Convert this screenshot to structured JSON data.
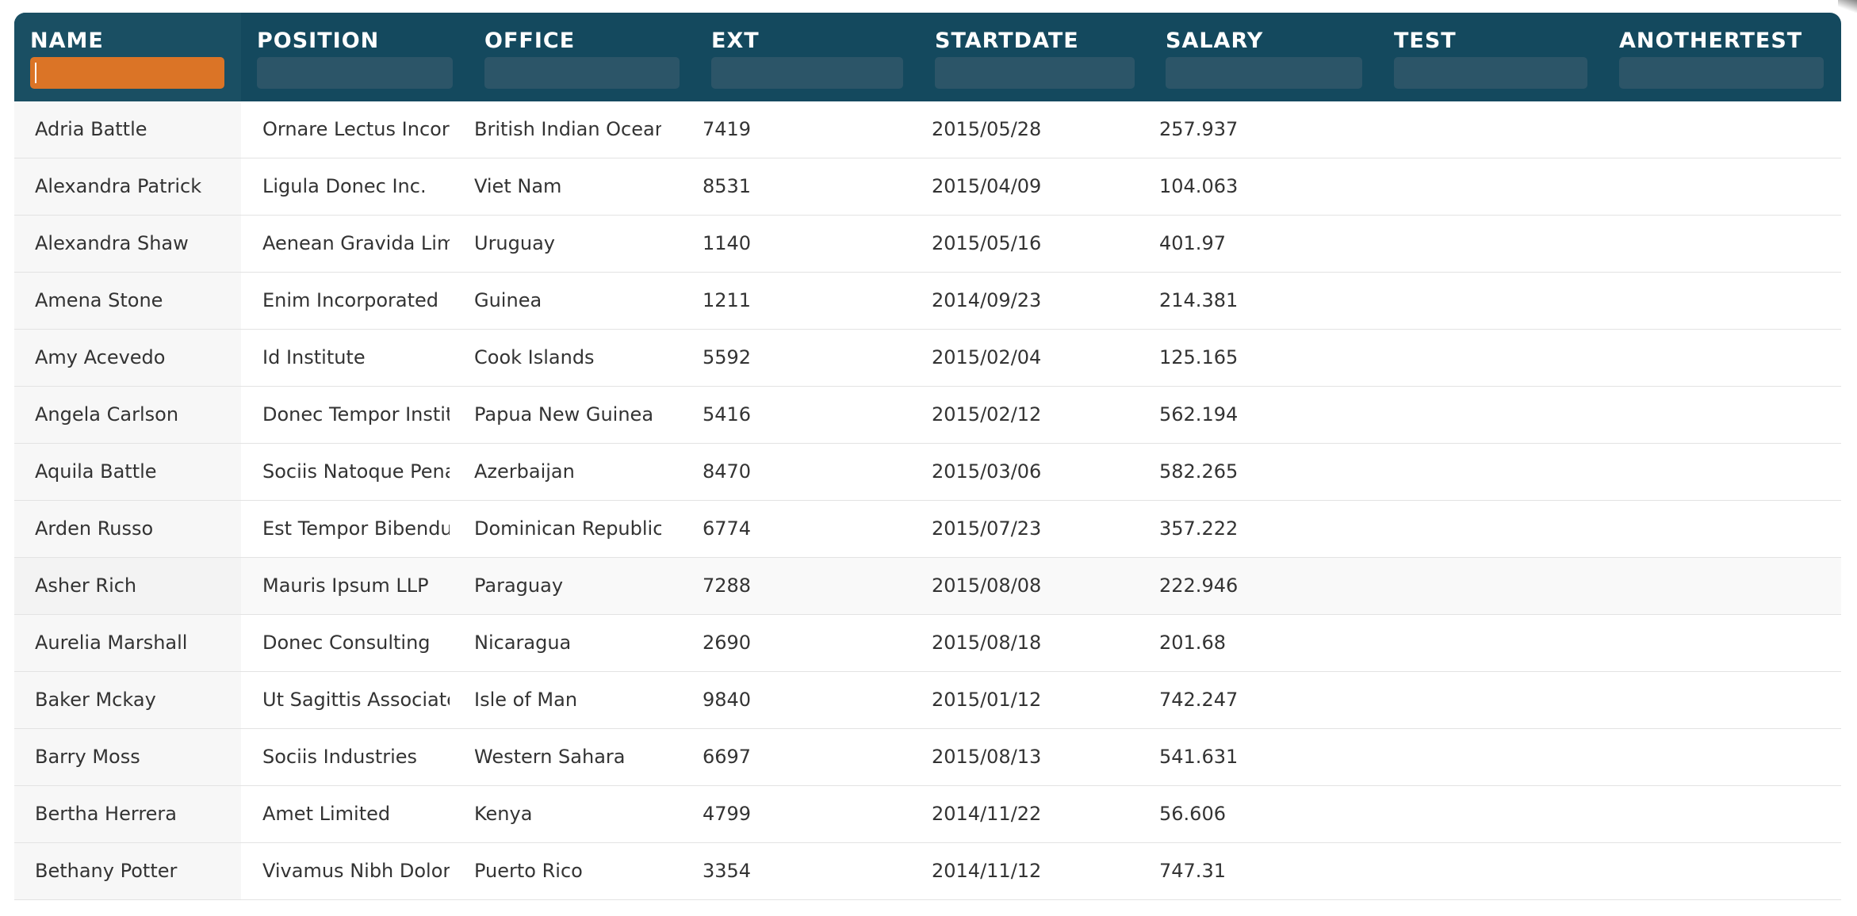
{
  "columns": [
    {
      "key": "name",
      "label": "NAME"
    },
    {
      "key": "position",
      "label": "POSITION"
    },
    {
      "key": "office",
      "label": "OFFICE"
    },
    {
      "key": "ext",
      "label": "EXT"
    },
    {
      "key": "startdate",
      "label": "STARTDATE"
    },
    {
      "key": "salary",
      "label": "SALARY"
    },
    {
      "key": "test",
      "label": "TEST"
    },
    {
      "key": "anothertest",
      "label": "ANOTHERTEST"
    }
  ],
  "filters": {
    "name": "",
    "position": "",
    "office": "",
    "ext": "",
    "startdate": "",
    "salary": "",
    "test": "",
    "anothertest": ""
  },
  "rows": [
    {
      "name": "Adria Battle",
      "position": "Ornare Lectus Incorporated",
      "office": "British Indian Ocean Territory",
      "ext": "7419",
      "startdate": "2015/05/28",
      "salary": "257.937",
      "test": "",
      "anothertest": ""
    },
    {
      "name": "Alexandra Patrick",
      "position": "Ligula Donec Inc.",
      "office": "Viet Nam",
      "ext": "8531",
      "startdate": "2015/04/09",
      "salary": "104.063",
      "test": "",
      "anothertest": ""
    },
    {
      "name": "Alexandra Shaw",
      "position": "Aenean Gravida Limited",
      "office": "Uruguay",
      "ext": "1140",
      "startdate": "2015/05/16",
      "salary": "401.97",
      "test": "",
      "anothertest": ""
    },
    {
      "name": "Amena Stone",
      "position": "Enim Incorporated",
      "office": "Guinea",
      "ext": "1211",
      "startdate": "2014/09/23",
      "salary": "214.381",
      "test": "",
      "anothertest": ""
    },
    {
      "name": "Amy Acevedo",
      "position": "Id Institute",
      "office": "Cook Islands",
      "ext": "5592",
      "startdate": "2015/02/04",
      "salary": "125.165",
      "test": "",
      "anothertest": ""
    },
    {
      "name": "Angela Carlson",
      "position": "Donec Tempor Institute",
      "office": "Papua New Guinea",
      "ext": "5416",
      "startdate": "2015/02/12",
      "salary": "562.194",
      "test": "",
      "anothertest": ""
    },
    {
      "name": "Aquila Battle",
      "position": "Sociis Natoque Penatibus",
      "office": "Azerbaijan",
      "ext": "8470",
      "startdate": "2015/03/06",
      "salary": "582.265",
      "test": "",
      "anothertest": ""
    },
    {
      "name": "Arden Russo",
      "position": "Est Tempor Bibendum",
      "office": "Dominican Republic",
      "ext": "6774",
      "startdate": "2015/07/23",
      "salary": "357.222",
      "test": "",
      "anothertest": ""
    },
    {
      "name": "Asher Rich",
      "position": "Mauris Ipsum LLP",
      "office": "Paraguay",
      "ext": "7288",
      "startdate": "2015/08/08",
      "salary": "222.946",
      "test": "",
      "anothertest": ""
    },
    {
      "name": "Aurelia Marshall",
      "position": "Donec Consulting",
      "office": "Nicaragua",
      "ext": "2690",
      "startdate": "2015/08/18",
      "salary": "201.68",
      "test": "",
      "anothertest": ""
    },
    {
      "name": "Baker Mckay",
      "position": "Ut Sagittis Associates",
      "office": "Isle of Man",
      "ext": "9840",
      "startdate": "2015/01/12",
      "salary": "742.247",
      "test": "",
      "anothertest": ""
    },
    {
      "name": "Barry Moss",
      "position": "Sociis Industries",
      "office": "Western Sahara",
      "ext": "6697",
      "startdate": "2015/08/13",
      "salary": "541.631",
      "test": "",
      "anothertest": ""
    },
    {
      "name": "Bertha Herrera",
      "position": "Amet Limited",
      "office": "Kenya",
      "ext": "4799",
      "startdate": "2014/11/22",
      "salary": "56.606",
      "test": "",
      "anothertest": ""
    },
    {
      "name": "Bethany Potter",
      "position": "Vivamus Nibh Dolor Incorporated",
      "office": "Puerto Rico",
      "ext": "3354",
      "startdate": "2014/11/12",
      "salary": "747.31",
      "test": "",
      "anothertest": ""
    }
  ],
  "hovered_row_index": 8,
  "colors": {
    "header_bg": "#14495e",
    "filter_bg": "#2c5568",
    "active_filter": "#db7426",
    "text": "#333333"
  }
}
